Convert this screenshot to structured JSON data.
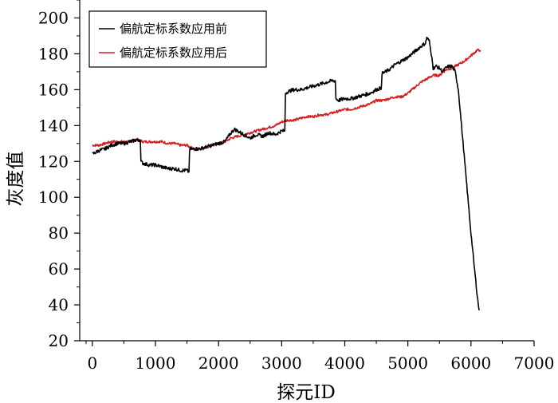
{
  "chart_data": {
    "type": "line",
    "title": "",
    "xlabel": "探元ID",
    "ylabel": "灰度值",
    "xlim": [
      -200,
      7000
    ],
    "ylim": [
      20,
      210
    ],
    "xticks": [
      0,
      1000,
      2000,
      3000,
      4000,
      5000,
      6000,
      7000
    ],
    "yticks": [
      20,
      40,
      60,
      80,
      100,
      120,
      140,
      160,
      180,
      200
    ],
    "grid": false,
    "legend_position": "top-left",
    "colors": {
      "before": "#000000",
      "after": "#d42020"
    },
    "series": [
      {
        "name": "偏航定标系数应用前",
        "x": [
          0,
          100,
          200,
          300,
          400,
          500,
          600,
          700,
          760,
          770,
          800,
          900,
          1000,
          1100,
          1200,
          1300,
          1400,
          1500,
          1530,
          1540,
          1560,
          1700,
          1800,
          1900,
          2000,
          2100,
          2200,
          2250,
          2300,
          2400,
          2500,
          2600,
          2700,
          2800,
          2900,
          3000,
          3050,
          3060,
          3100,
          3200,
          3300,
          3400,
          3500,
          3600,
          3700,
          3800,
          3850,
          3860,
          3900,
          4000,
          4100,
          4200,
          4300,
          4400,
          4500,
          4580,
          4590,
          4650,
          4700,
          4800,
          4900,
          5000,
          5100,
          5200,
          5280,
          5300,
          5340,
          5380,
          5400,
          5450,
          5500,
          5550,
          5600,
          5650,
          5700,
          5750,
          5800,
          5850,
          5900,
          5950,
          6000,
          6050,
          6100,
          6130
        ],
        "values": [
          124,
          126,
          127,
          129,
          130,
          130,
          131,
          132,
          132,
          120,
          119,
          118,
          118,
          117,
          116,
          116,
          115,
          115,
          114,
          126,
          127,
          127,
          128,
          129,
          130,
          131,
          136,
          138,
          137,
          135,
          133,
          135,
          134,
          136,
          135,
          137,
          137,
          158,
          159,
          160,
          160,
          161,
          162,
          163,
          164,
          165,
          165,
          155,
          154,
          155,
          155,
          156,
          157,
          158,
          160,
          161,
          169,
          170,
          171,
          174,
          176,
          178,
          181,
          184,
          186,
          189,
          187,
          178,
          172,
          173,
          172,
          170,
          172,
          173,
          173,
          170,
          160,
          140,
          120,
          100,
          80,
          62,
          45,
          37
        ]
      },
      {
        "name": "偏航定标系数应用后",
        "x": [
          0,
          100,
          200,
          300,
          400,
          500,
          600,
          700,
          800,
          900,
          1000,
          1100,
          1200,
          1300,
          1400,
          1500,
          1600,
          1700,
          1800,
          1900,
          2000,
          2100,
          2200,
          2300,
          2400,
          2500,
          2600,
          2700,
          2800,
          2900,
          3000,
          3100,
          3200,
          3300,
          3400,
          3500,
          3600,
          3700,
          3800,
          3900,
          4000,
          4100,
          4200,
          4300,
          4400,
          4500,
          4600,
          4700,
          4800,
          4900,
          5000,
          5100,
          5200,
          5300,
          5400,
          5500,
          5600,
          5700,
          5800,
          5900,
          6000,
          6100,
          6150
        ],
        "values": [
          129,
          129,
          130,
          131,
          131,
          131,
          131,
          132,
          131,
          131,
          131,
          131,
          130,
          130,
          129,
          129,
          127,
          127,
          128,
          129,
          130,
          131,
          133,
          134,
          135,
          136,
          137,
          138,
          139,
          140,
          142,
          143,
          143,
          144,
          145,
          145,
          146,
          146,
          147,
          148,
          149,
          149,
          150,
          151,
          152,
          154,
          154,
          155,
          156,
          156,
          158,
          161,
          164,
          166,
          168,
          168,
          171,
          172,
          174,
          176,
          179,
          182,
          182
        ]
      }
    ]
  }
}
